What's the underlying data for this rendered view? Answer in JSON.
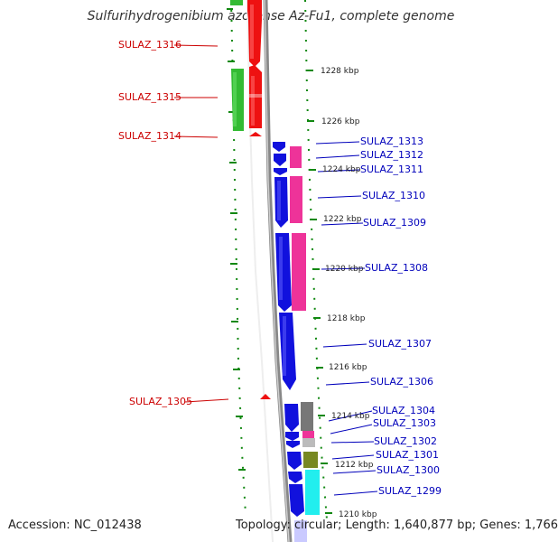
{
  "title": "Sulfurihydrogenibium azorense Az-Fu1, complete genome",
  "footer": {
    "accession": "Accession: NC_012438",
    "topology": "Topology: circular; Length: 1,640,877 bp; Genes: 1,766"
  },
  "colors": {
    "forward_strand_default": "#ee1111",
    "reverse_strand_default": "#1111dd",
    "rna_green": "#33bb33",
    "pink": "#ee3399",
    "gray": "#777777",
    "olive": "#778822",
    "cyan": "#22eeee",
    "backbone": "#888888",
    "ruler_dots": "#118811",
    "left_label": "#cc0000",
    "right_label": "#0000bb"
  },
  "ruler_ticks": [
    "1228 kbp",
    "1226 kbp",
    "1224 kbp",
    "1222 kbp",
    "1220 kbp",
    "1218 kbp",
    "1216 kbp",
    "1214 kbp",
    "1212 kbp",
    "1210 kbp"
  ],
  "left_genes": [
    "SULAZ_1316",
    "SULAZ_1315",
    "SULAZ_1314",
    "SULAZ_1305"
  ],
  "right_genes": [
    "SULAZ_1313",
    "SULAZ_1312",
    "SULAZ_1311",
    "SULAZ_1310",
    "SULAZ_1309",
    "SULAZ_1308",
    "SULAZ_1307",
    "SULAZ_1306",
    "SULAZ_1304",
    "SULAZ_1303",
    "SULAZ_1302",
    "SULAZ_1301",
    "SULAZ_1300",
    "SULAZ_1299"
  ]
}
